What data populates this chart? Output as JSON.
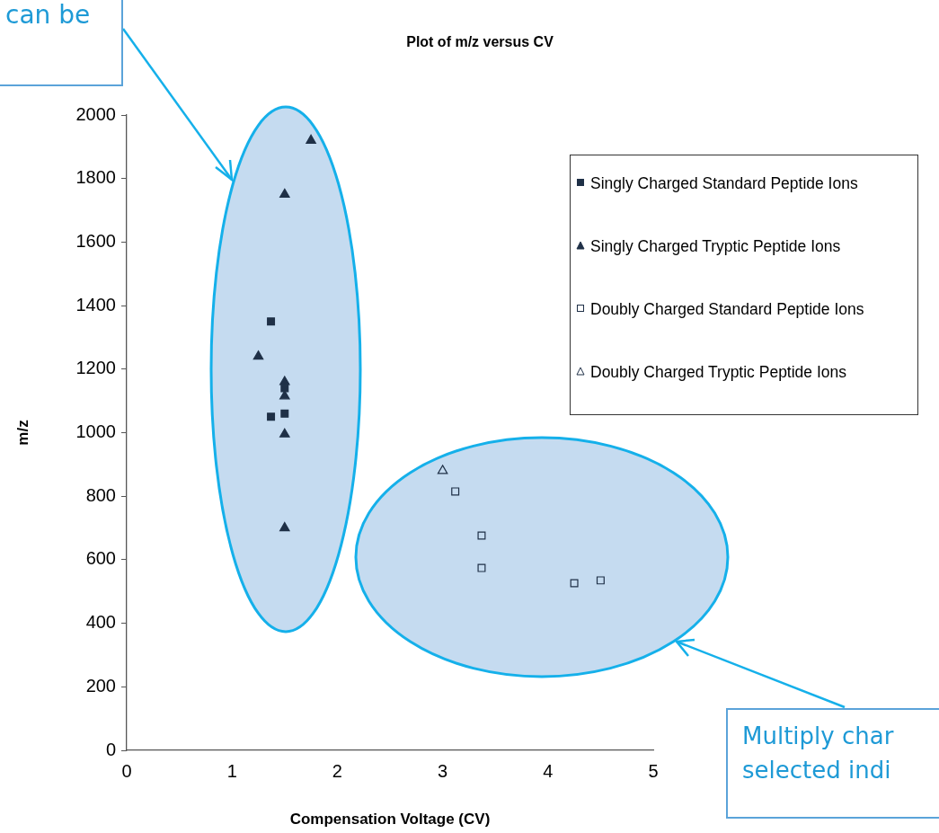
{
  "chart_data": {
    "type": "scatter",
    "title": "Plot of m/z versus CV",
    "xlabel": "Compensation Voltage (CV)",
    "ylabel": "m/z",
    "xlim": [
      0,
      5
    ],
    "xticks": [
      0,
      1,
      2,
      3,
      4,
      5
    ],
    "ylim": [
      0,
      2000
    ],
    "yticks": [
      0,
      200,
      400,
      600,
      800,
      1000,
      1200,
      1400,
      1600,
      1800,
      2000
    ],
    "grid": false,
    "legend": "right",
    "annotations": [
      "can be",
      "Multiply char selected indi"
    ],
    "series": [
      {
        "name": "Singly Charged Standard Peptide Ions",
        "color": "#1f3047",
        "marker": "square",
        "x": [
          1.37,
          1.5,
          1.37,
          1.5
        ],
        "values": [
          1350,
          1140,
          1050,
          1060
        ]
      },
      {
        "name": "Singly Charged Tryptic Peptide Ions",
        "color": "#1f3047",
        "marker": "triangle",
        "x": [
          1.75,
          1.5,
          1.25,
          1.5,
          1.5,
          1.5,
          1.5
        ],
        "values": [
          1920,
          1750,
          1240,
          1160,
          1115,
          995,
          700
        ]
      },
      {
        "name": "Doubly Charged Standard Peptide Ions",
        "color": "#1f3047",
        "marker": "square",
        "x": [
          3.12,
          3.37,
          3.37,
          4.25,
          4.5
        ],
        "values": [
          815,
          676,
          574,
          526,
          535
        ]
      },
      {
        "name": "Doubly Charged Tryptic Peptide Ions",
        "color": "#1f3047",
        "marker": "triangle",
        "x": [
          3.0
        ],
        "values": [
          880
        ]
      }
    ]
  }
}
